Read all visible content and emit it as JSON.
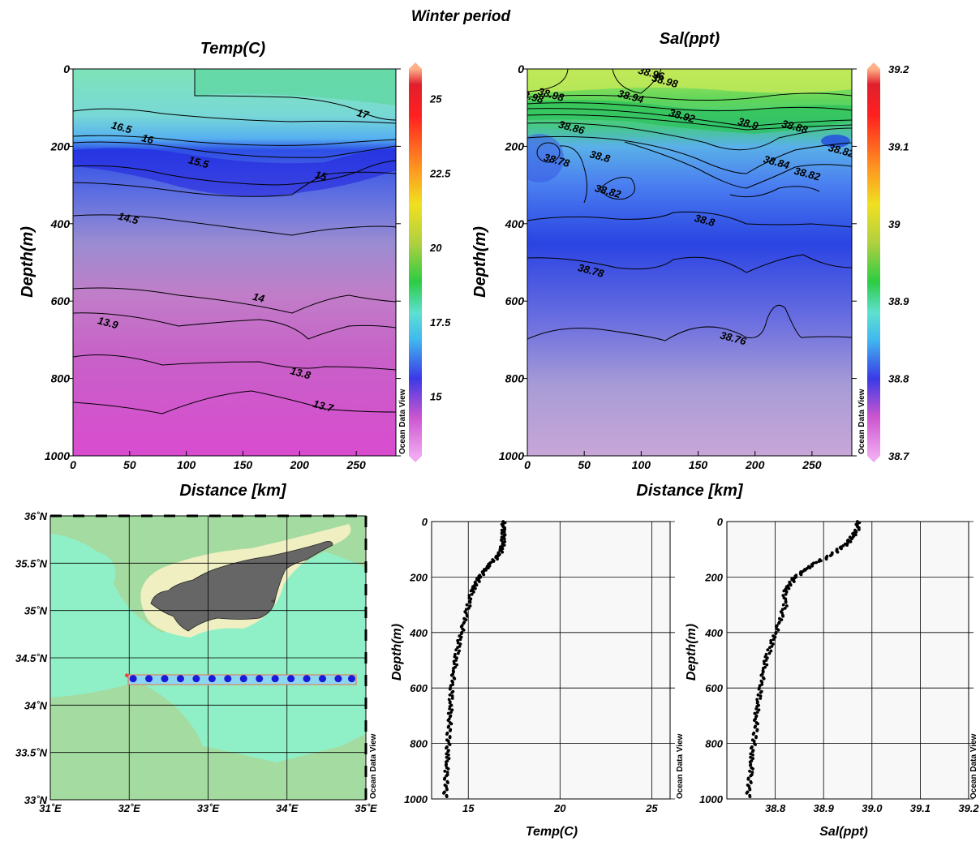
{
  "figure": {
    "title": "Winter period",
    "watermark": "Ocean Data View"
  },
  "chart_data": [
    {
      "id": "temp_section",
      "type": "heatmap",
      "title": "Temp(C)",
      "xlabel": "Distance [km]",
      "ylabel": "Depth(m)",
      "xlim": [
        0,
        285
      ],
      "ylim": [
        1000,
        0
      ],
      "xticks": [
        "0",
        "50",
        "100",
        "150",
        "200",
        "250"
      ],
      "yticks": [
        "0",
        "200",
        "400",
        "600",
        "800",
        "1000"
      ],
      "colorbar": {
        "min": 13,
        "max": 26,
        "ticks": [
          "15",
          "17.5",
          "20",
          "22.5",
          "25"
        ]
      },
      "contours": [
        {
          "label": "17",
          "label_at": [
            255,
            125
          ]
        },
        {
          "label": "16.5",
          "label_at": [
            42,
            160
          ]
        },
        {
          "label": "16",
          "label_at": [
            65,
            190
          ]
        },
        {
          "label": "15.5",
          "label_at": [
            110,
            250
          ]
        },
        {
          "label": "15",
          "label_at": [
            218,
            285
          ]
        },
        {
          "label": "14.5",
          "label_at": [
            48,
            395
          ]
        },
        {
          "label": "14",
          "label_at": [
            163,
            600
          ]
        },
        {
          "label": "13.9",
          "label_at": [
            30,
            665
          ]
        },
        {
          "label": "13.8",
          "label_at": [
            200,
            795
          ]
        },
        {
          "label": "13.7",
          "label_at": [
            220,
            880
          ]
        }
      ]
    },
    {
      "id": "sal_section",
      "type": "heatmap",
      "title": "Sal(ppt)",
      "xlabel": "Distance [km]",
      "ylabel": "Depth(m)",
      "xlim": [
        0,
        285
      ],
      "ylim": [
        1000,
        0
      ],
      "xticks": [
        "0",
        "50",
        "100",
        "150",
        "200",
        "250"
      ],
      "yticks": [
        "0",
        "200",
        "400",
        "600",
        "800",
        "1000"
      ],
      "colorbar": {
        "min": 38.7,
        "max": 39.2,
        "ticks": [
          "38.7",
          "38.8",
          "38.9",
          "39",
          "39.1",
          "39.2"
        ]
      },
      "contours": [
        {
          "label": "38.98",
          "label_at": [
            2,
            80
          ]
        },
        {
          "label": "38.98",
          "label_at": [
            20,
            75
          ]
        },
        {
          "label": "38.96",
          "label_at": [
            108,
            20
          ]
        },
        {
          "label": "38.98",
          "label_at": [
            120,
            40
          ]
        },
        {
          "label": "38.94",
          "label_at": [
            90,
            80
          ]
        },
        {
          "label": "38.92",
          "label_at": [
            135,
            130
          ]
        },
        {
          "label": "38.9",
          "label_at": [
            193,
            150
          ]
        },
        {
          "label": "38.88",
          "label_at": [
            234,
            158
          ]
        },
        {
          "label": "38.86",
          "label_at": [
            38,
            160
          ]
        },
        {
          "label": "38.84",
          "label_at": [
            218,
            250
          ]
        },
        {
          "label": "38.82",
          "label_at": [
            275,
            220
          ]
        },
        {
          "label": "38.82",
          "label_at": [
            245,
            280
          ]
        },
        {
          "label": "38.78",
          "label_at": [
            25,
            245
          ]
        },
        {
          "label": "38.8",
          "label_at": [
            63,
            235
          ]
        },
        {
          "label": "38.82",
          "label_at": [
            70,
            325
          ]
        },
        {
          "label": "38.8",
          "label_at": [
            155,
            400
          ]
        },
        {
          "label": "38.78",
          "label_at": [
            55,
            530
          ]
        },
        {
          "label": "38.76",
          "label_at": [
            180,
            705
          ]
        }
      ]
    },
    {
      "id": "station_map",
      "type": "scatter",
      "xlim": [
        31,
        35
      ],
      "ylim": [
        33,
        36
      ],
      "xticks": [
        "31˚E",
        "32˚E",
        "33˚E",
        "34˚E",
        "35˚E"
      ],
      "yticks": [
        "33˚N",
        "33.5˚N",
        "34˚N",
        "34.5˚N",
        "35˚N",
        "35.5˚N",
        "36˚N"
      ],
      "stations": {
        "lat": 34.28,
        "lon": [
          32.05,
          32.25,
          32.45,
          32.65,
          32.85,
          33.05,
          33.25,
          33.45,
          33.65,
          33.85,
          34.05,
          34.25,
          34.45,
          34.65,
          34.82
        ]
      },
      "start_marker": {
        "lon": 31.97,
        "lat": 34.3
      },
      "colors": {
        "sea": "#8ff0c8",
        "shelf": "#a4dba0",
        "coast": "#efefc2",
        "land": "#666666",
        "station": "#1a1ad8",
        "track": "#e08060",
        "start": "#ff2020"
      }
    },
    {
      "id": "temp_profile",
      "type": "scatter",
      "xlabel": "Temp(C)",
      "ylabel": "Depth(m)",
      "xlim": [
        13,
        26
      ],
      "ylim": [
        1000,
        0
      ],
      "xticks": [
        "15",
        "20",
        "25"
      ],
      "yticks": [
        "0",
        "200",
        "400",
        "600",
        "800",
        "1000"
      ],
      "profile": {
        "depth": [
          0,
          25,
          50,
          75,
          100,
          125,
          150,
          175,
          200,
          225,
          250,
          300,
          350,
          400,
          450,
          500,
          550,
          600,
          650,
          700,
          750,
          800,
          850,
          900,
          950,
          1000
        ],
        "value": [
          16.9,
          16.9,
          16.9,
          16.9,
          16.8,
          16.6,
          16.2,
          15.9,
          15.6,
          15.4,
          15.2,
          15.0,
          14.8,
          14.6,
          14.45,
          14.3,
          14.2,
          14.1,
          14.05,
          14.0,
          13.95,
          13.9,
          13.85,
          13.8,
          13.78,
          13.75
        ]
      }
    },
    {
      "id": "sal_profile",
      "type": "scatter",
      "xlabel": "Sal(ppt)",
      "ylabel": "Depth(m)",
      "xlim": [
        38.7,
        39.2
      ],
      "ylim": [
        1000,
        0
      ],
      "xticks": [
        "38.8",
        "38.9",
        "39.0",
        "39.1",
        "39.2"
      ],
      "yticks": [
        "0",
        "200",
        "400",
        "600",
        "800",
        "1000"
      ],
      "profile": {
        "depth": [
          0,
          25,
          50,
          75,
          100,
          125,
          150,
          175,
          200,
          225,
          250,
          300,
          350,
          400,
          450,
          500,
          550,
          600,
          650,
          700,
          750,
          800,
          850,
          900,
          950,
          1000
        ],
        "value": [
          38.97,
          38.97,
          38.96,
          38.95,
          38.93,
          38.91,
          38.88,
          38.86,
          38.84,
          38.83,
          38.82,
          38.82,
          38.81,
          38.8,
          38.79,
          38.78,
          38.775,
          38.77,
          38.765,
          38.76,
          38.76,
          38.755,
          38.75,
          38.75,
          38.745,
          38.745
        ]
      }
    }
  ]
}
